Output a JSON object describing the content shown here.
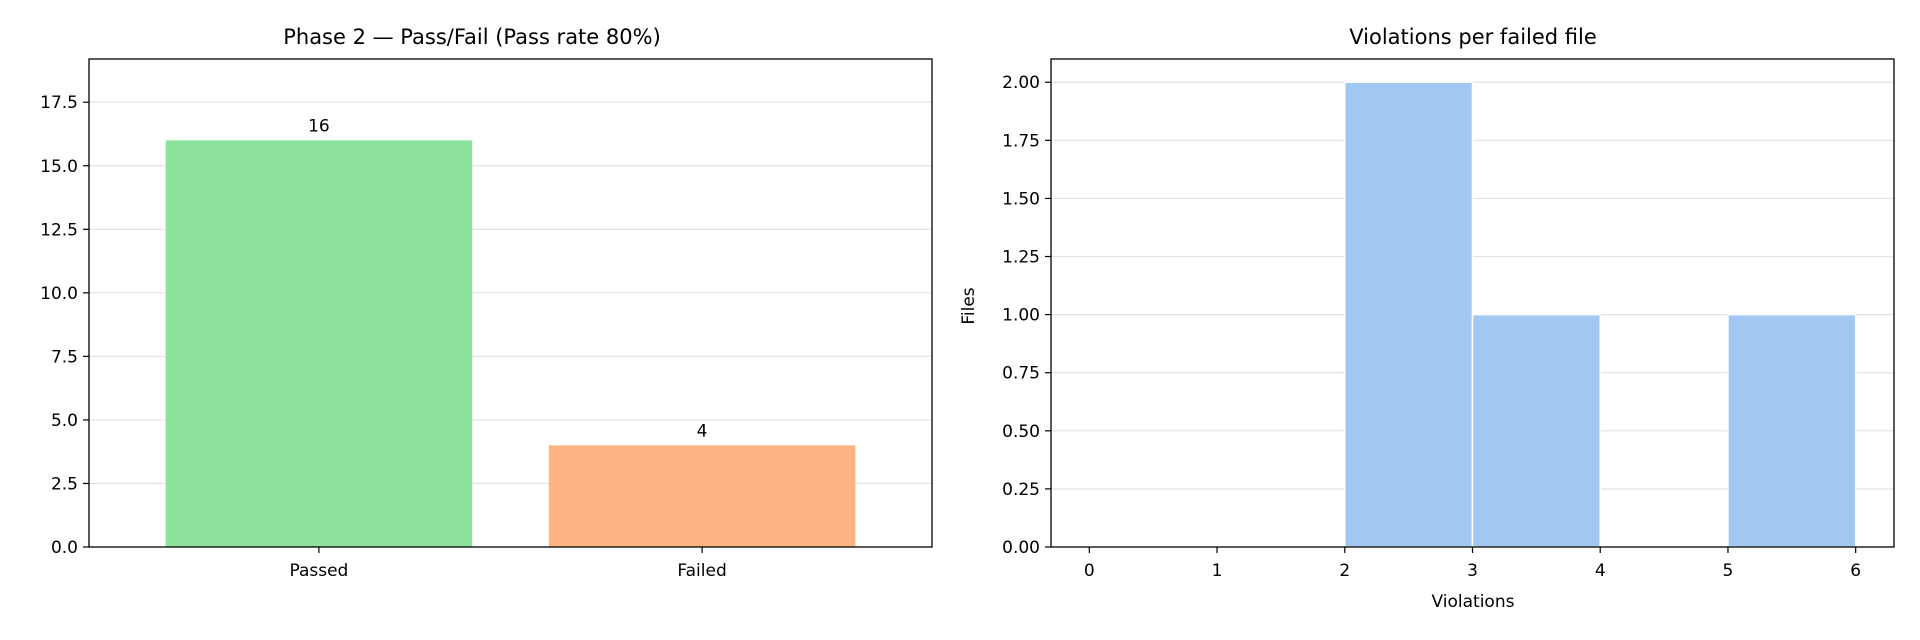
{
  "chart_data": [
    {
      "type": "bar",
      "title": "Phase 2 — Pass/Fail (Pass rate 80%)",
      "categories": [
        "Passed",
        "Failed"
      ],
      "values": [
        16,
        4
      ],
      "data_labels": [
        "16",
        "4"
      ],
      "colors": [
        "#8de29b",
        "#feb482"
      ],
      "ylim": [
        0,
        19.2
      ],
      "yticks": [
        0,
        2.5,
        5,
        7.5,
        10,
        12.5,
        15,
        17.5
      ],
      "ytick_labels": [
        "0.0",
        "2.5",
        "5.0",
        "7.5",
        "10.0",
        "12.5",
        "15.0",
        "17.5"
      ],
      "xlabel": "",
      "ylabel": "",
      "grid": "y",
      "legend": "none"
    },
    {
      "type": "histogram",
      "title": "Violations per failed file",
      "bins": [
        {
          "start": 0,
          "end": 1,
          "count": 0
        },
        {
          "start": 1,
          "end": 2,
          "count": 0
        },
        {
          "start": 2,
          "end": 3,
          "count": 2
        },
        {
          "start": 3,
          "end": 4,
          "count": 1
        },
        {
          "start": 4,
          "end": 5,
          "count": 0
        },
        {
          "start": 5,
          "end": 6,
          "count": 1
        }
      ],
      "color": "#a1c8f3",
      "xlim": [
        -0.3,
        6.3
      ],
      "ylim": [
        0,
        2.1
      ],
      "xticks": [
        0,
        1,
        2,
        3,
        4,
        5,
        6
      ],
      "xtick_labels": [
        "0",
        "1",
        "2",
        "3",
        "4",
        "5",
        "6"
      ],
      "yticks": [
        0,
        0.25,
        0.5,
        0.75,
        1,
        1.25,
        1.5,
        1.75,
        2
      ],
      "ytick_labels": [
        "0.00",
        "0.25",
        "0.50",
        "0.75",
        "1.00",
        "1.25",
        "1.50",
        "1.75",
        "2.00"
      ],
      "xlabel": "Violations",
      "ylabel": "Files",
      "grid": "y",
      "legend": "none"
    }
  ]
}
